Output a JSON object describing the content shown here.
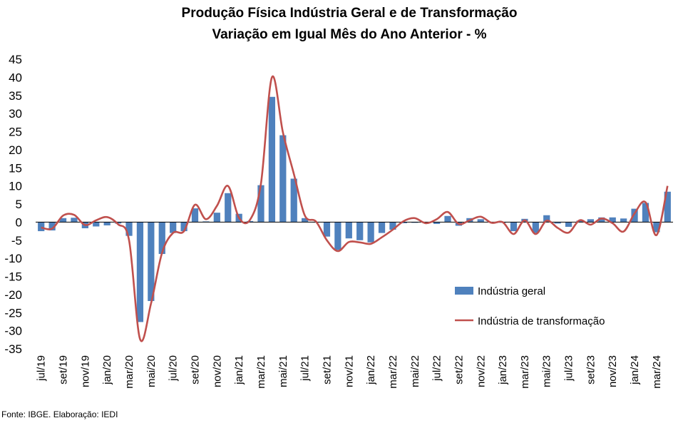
{
  "chart_data": {
    "type": "bar",
    "title": "Produção Física Indústria Geral e de Transformação",
    "subtitle": "Variação em Igual Mês do Ano Anterior - %",
    "xlabel": "",
    "ylabel": "",
    "ylim": [
      -35,
      45
    ],
    "yticks": [
      45,
      40,
      35,
      30,
      25,
      20,
      15,
      10,
      5,
      0,
      -5,
      -10,
      -15,
      -20,
      -25,
      -30,
      -35
    ],
    "x_tick_labels": [
      "jul/19",
      "set/19",
      "nov/19",
      "jan/20",
      "mar/20",
      "mai/20",
      "jul/20",
      "set/20",
      "nov/20",
      "jan/21",
      "mar/21",
      "mai/21",
      "jul/21",
      "set/21",
      "nov/21",
      "jan/22",
      "mar/22",
      "mai/22",
      "jul/22",
      "set/22",
      "nov/22",
      "jan/23",
      "mar/23",
      "mai/23",
      "jul/23",
      "set/23",
      "nov/23",
      "jan/24",
      "mar/24"
    ],
    "categories": [
      "jul/19",
      "ago/19",
      "set/19",
      "out/19",
      "nov/19",
      "dez/19",
      "jan/20",
      "fev/20",
      "mar/20",
      "abr/20",
      "mai/20",
      "jun/20",
      "jul/20",
      "ago/20",
      "set/20",
      "out/20",
      "nov/20",
      "dez/20",
      "jan/21",
      "fev/21",
      "mar/21",
      "abr/21",
      "mai/21",
      "jun/21",
      "jul/21",
      "ago/21",
      "set/21",
      "out/21",
      "nov/21",
      "dez/21",
      "jan/22",
      "fev/22",
      "mar/22",
      "abr/22",
      "mai/22",
      "jun/22",
      "jul/22",
      "ago/22",
      "set/22",
      "out/22",
      "nov/22",
      "dez/22",
      "jan/23",
      "fev/23",
      "mar/23",
      "abr/23",
      "mai/23",
      "jun/23",
      "jul/23",
      "ago/23",
      "set/23",
      "out/23",
      "nov/23",
      "dez/23",
      "jan/24",
      "fev/24",
      "mar/24",
      "abr/24"
    ],
    "series": [
      {
        "name": "Indústria geral",
        "type": "bar",
        "color": "#4f81bd",
        "values": [
          -2.5,
          -2.3,
          1.1,
          1.2,
          -1.7,
          -1.2,
          -0.9,
          -0.4,
          -3.8,
          -27.6,
          -21.8,
          -8.8,
          -3.0,
          -2.5,
          3.8,
          0.2,
          2.6,
          8.0,
          2.3,
          0.3,
          10.2,
          34.6,
          24.0,
          12.0,
          1.1,
          0.0,
          -4.0,
          -7.7,
          -4.5,
          -5.0,
          -5.6,
          -3.0,
          -2.1,
          -0.3,
          -0.2,
          -0.3,
          -0.5,
          1.7,
          -1.0,
          1.1,
          0.8,
          -0.1,
          -0.2,
          -2.5,
          0.9,
          -3.0,
          1.9,
          -0.4,
          -1.3,
          0.4,
          0.8,
          1.3,
          1.3,
          1.0,
          3.7,
          5.3,
          -2.8,
          8.4
        ]
      },
      {
        "name": "Indústria de transformação",
        "type": "line",
        "color": "#c0504d",
        "values": [
          -1.5,
          -1.8,
          1.8,
          2.0,
          -0.8,
          0.5,
          1.4,
          -0.6,
          -5.0,
          -32.3,
          -22.5,
          -8.5,
          -3.0,
          -2.5,
          4.8,
          0.8,
          4.5,
          10.0,
          1.2,
          0.6,
          10.6,
          40.0,
          24.8,
          13.3,
          1.8,
          0.2,
          -5.0,
          -8.0,
          -5.5,
          -5.6,
          -6.0,
          -4.2,
          -2.1,
          0.3,
          1.1,
          -0.3,
          0.8,
          2.8,
          -0.5,
          0.5,
          1.5,
          -0.2,
          0.0,
          -3.3,
          0.5,
          -3.3,
          0.4,
          -1.6,
          -2.9,
          0.5,
          -0.7,
          1.0,
          -0.3,
          -2.6,
          2.4,
          5.5,
          -3.6,
          10.0
        ]
      }
    ],
    "legend": {
      "placement": "bottom-right"
    },
    "grid": false
  },
  "source_note": "Fonte: IBGE. Elaboração: IEDI"
}
